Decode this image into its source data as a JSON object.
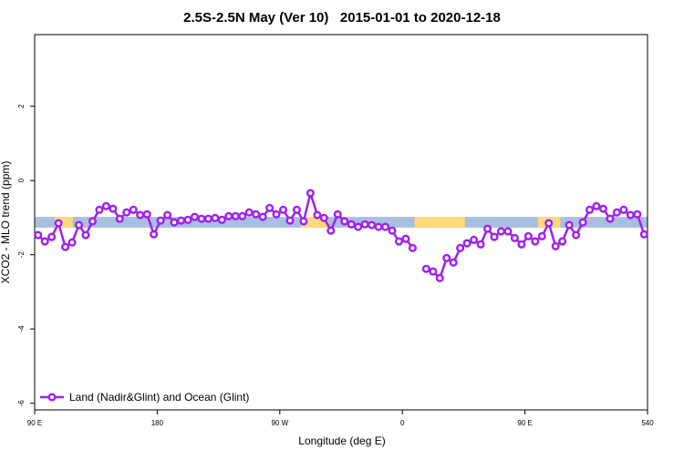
{
  "chart_data": {
    "type": "line",
    "title": "2.5S-2.5N May (Ver 10)   2015-01-01 to 2020-12-18",
    "xlabel": "Longitude (deg E)",
    "ylabel": "XCO2 - MLO trend (ppm)",
    "x": [
      92.5,
      97.5,
      102.5,
      107.5,
      112.5,
      117.5,
      122.5,
      127.5,
      132.5,
      137.5,
      142.5,
      147.5,
      152.5,
      157.5,
      162.5,
      167.5,
      172.5,
      177.5,
      182.5,
      187.5,
      192.5,
      197.5,
      202.5,
      207.5,
      212.5,
      217.5,
      222.5,
      227.5,
      232.5,
      237.5,
      242.5,
      247.5,
      252.5,
      257.5,
      262.5,
      267.5,
      272.5,
      277.5,
      282.5,
      287.5,
      292.5,
      297.5,
      302.5,
      307.5,
      312.5,
      317.5,
      322.5,
      327.5,
      332.5,
      337.5,
      342.5,
      347.5,
      352.5,
      357.5,
      362.5,
      367.5,
      372.5,
      377.5,
      382.5,
      387.5,
      392.5,
      397.5,
      402.5,
      407.5,
      412.5,
      417.5,
      422.5,
      427.5,
      432.5,
      437.5,
      442.5,
      447.5,
      452.5,
      457.5,
      462.5,
      467.5,
      472.5,
      477.5,
      482.5,
      487.5,
      492.5,
      497.5,
      502.5,
      507.5,
      512.5,
      517.5,
      522.5,
      527.5,
      532.5,
      537.5
    ],
    "series": [
      {
        "name": "Land (Nadir&Glint) and Ocean (Glint)",
        "color": "#a020f0",
        "values": [
          -1.47,
          -1.64,
          -1.52,
          -1.15,
          -1.79,
          -1.67,
          -1.2,
          -1.47,
          -1.1,
          -0.79,
          -0.69,
          -0.76,
          -1.03,
          -0.86,
          -0.79,
          -0.93,
          -0.91,
          -1.45,
          -1.08,
          -0.93,
          -1.13,
          -1.08,
          -1.06,
          -0.98,
          -1.03,
          -1.03,
          -1.01,
          -1.06,
          -0.96,
          -0.96,
          -0.96,
          -0.86,
          -0.91,
          -0.98,
          -0.74,
          -0.91,
          -0.79,
          -1.08,
          -0.79,
          -1.1,
          -0.34,
          -0.93,
          -1.01,
          -1.35,
          -0.91,
          -1.1,
          -1.18,
          -1.25,
          -1.18,
          -1.2,
          -1.25,
          -1.25,
          -1.35,
          -1.64,
          -1.57,
          -1.82,
          null,
          -2.38,
          -2.45,
          -2.63,
          -2.09,
          -2.21,
          -1.82,
          -1.69,
          -1.6,
          -1.72,
          -1.3,
          -1.52,
          -1.37,
          -1.37,
          -1.55,
          -1.72,
          -1.5,
          -1.64,
          -1.5,
          -1.15,
          -1.77,
          -1.64,
          -1.2,
          -1.47,
          -1.13,
          -0.79,
          -0.69,
          -0.76,
          -1.03,
          -0.86,
          -0.79,
          -0.93,
          -0.91,
          -1.45
        ]
      }
    ],
    "xlim": [
      90,
      540
    ],
    "ylim": [
      -6.18,
      3.93
    ],
    "xticks": [
      {
        "value": 90,
        "label": "90 E"
      },
      180,
      {
        "value": 270,
        "label": "90 W"
      },
      {
        "value": 360,
        "label": "0"
      },
      {
        "value": 450,
        "label": "90 E"
      },
      540
    ],
    "yticks": [
      2,
      0,
      -2,
      -4,
      -6
    ],
    "legend": "lower left",
    "band": {
      "ylim": [
        -1.27,
        -0.98
      ],
      "color": "#a9bfe0",
      "segments": [
        {
          "xlim": [
            104.7,
            118
          ],
          "color": "#ffd97a"
        },
        {
          "xlim": [
            285.5,
            305.6
          ],
          "color": "#ffd97a"
        },
        {
          "xlim": [
            369,
            406
          ],
          "color": "#ffd97a"
        },
        {
          "xlim": [
            459.6,
            476
          ],
          "color": "#ffd97a"
        }
      ]
    }
  }
}
